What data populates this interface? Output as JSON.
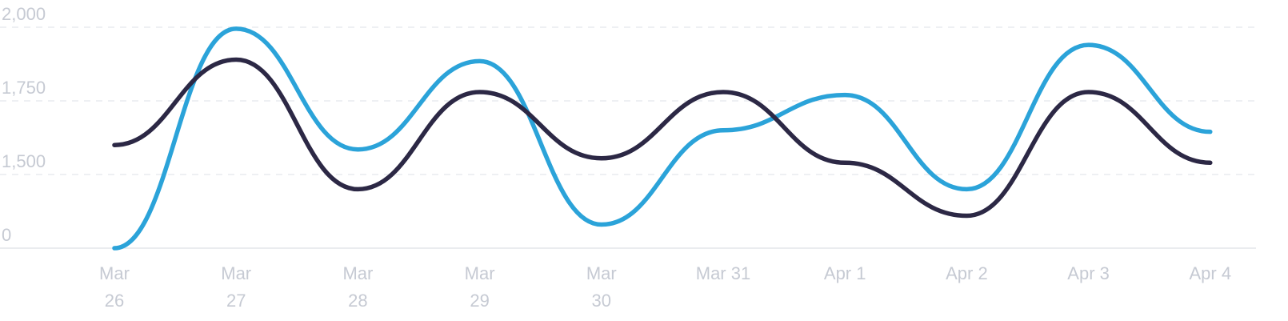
{
  "chart_data": {
    "type": "line",
    "categories": [
      [
        "Mar",
        "26"
      ],
      [
        "Mar",
        "27"
      ],
      [
        "Mar",
        "28"
      ],
      [
        "Mar",
        "29"
      ],
      [
        "Mar",
        "30"
      ],
      [
        "Mar 31"
      ],
      [
        "Apr 1"
      ],
      [
        "Apr 2"
      ],
      [
        "Apr 3"
      ],
      [
        "Apr 4"
      ]
    ],
    "y_ticks": [
      {
        "label": "0"
      },
      {
        "label": "1,500"
      },
      {
        "label": "1,750"
      },
      {
        "label": "2,000"
      }
    ],
    "y_scale": "piecewise: 0 sits one tick step below 1,500 (axis break)",
    "ylim": [
      1250,
      2000
    ],
    "grid": "horizontal dashed",
    "legend": "none",
    "series": [
      {
        "color": "#2ba3d9",
        "values": [
          1250,
          1995,
          1585,
          1885,
          1330,
          1650,
          1770,
          1450,
          1940,
          1645
        ]
      },
      {
        "color": "#2c2845",
        "values": [
          1600,
          1890,
          1450,
          1780,
          1555,
          1780,
          1540,
          1360,
          1780,
          1540
        ]
      }
    ]
  }
}
